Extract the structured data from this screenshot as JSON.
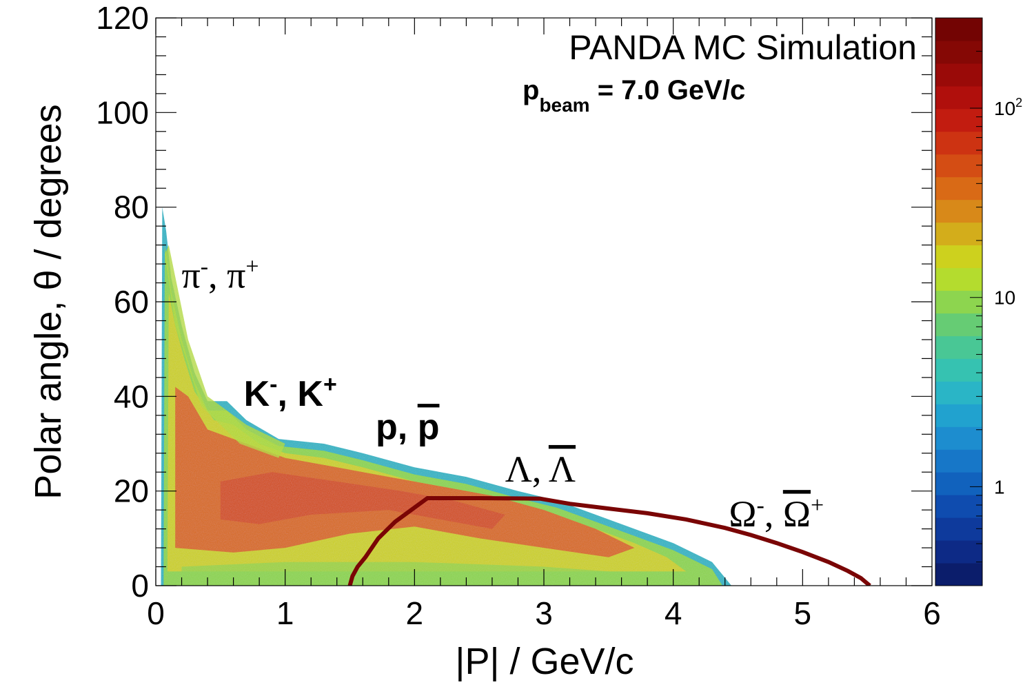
{
  "chart_data": {
    "type": "heatmap",
    "title": "PANDA MC Simulation",
    "subtitle": {
      "main": "p",
      "sub": "beam",
      "rest": " = 7.0 GeV/c"
    },
    "xlabel": "|P| / GeV/c",
    "ylabel": "Polar angle, θ / degrees",
    "xlim": [
      0,
      6
    ],
    "ylim": [
      0,
      120
    ],
    "x_ticks": [
      "0",
      "1",
      "2",
      "3",
      "4",
      "5",
      "6"
    ],
    "y_ticks": [
      "0",
      "20",
      "40",
      "60",
      "80",
      "100",
      "120"
    ],
    "colorbar": {
      "scale": "log",
      "range": [
        0.3,
        300
      ],
      "tick_labels": [
        {
          "base": "1",
          "exp": "",
          "value": 1
        },
        {
          "base": "10",
          "exp": "",
          "value": 10
        },
        {
          "base": "10",
          "exp": "2",
          "value": 100
        }
      ],
      "colors": [
        "#0b1d6b",
        "#0d2a86",
        "#0e3a9c",
        "#0f4caf",
        "#1162bd",
        "#1777c8",
        "#1d8dcf",
        "#21a2cf",
        "#2ab5c6",
        "#36c2b1",
        "#49c795",
        "#66cc74",
        "#8dd54f",
        "#b4dc2e",
        "#cdd11e",
        "#d3ad1b",
        "#d88919",
        "#d96a16",
        "#d44d14",
        "#cd3312",
        "#c21c10",
        "#b00f0c",
        "#9a0a08",
        "#850805",
        "#730403"
      ]
    },
    "annotations": [
      {
        "id": "pion",
        "style": "serif",
        "parts": [
          {
            "t": "π",
            "sup": false
          },
          {
            "t": "-",
            "sup": true
          },
          {
            "t": ",  π",
            "sup": false
          },
          {
            "t": "+",
            "sup": true
          }
        ],
        "at": [
          0.2,
          63
        ]
      },
      {
        "id": "kaon",
        "style": "sans",
        "parts": [
          {
            "t": "K",
            "sup": false
          },
          {
            "t": "-",
            "sup": true
          },
          {
            "t": ", K",
            "sup": false
          },
          {
            "t": "+",
            "sup": true
          }
        ],
        "at": [
          0.68,
          38
        ]
      },
      {
        "id": "proton",
        "style": "sans",
        "parts": [
          {
            "t": "p,  ",
            "sup": false
          },
          {
            "t": "p",
            "sup": false,
            "bar": true
          }
        ],
        "at": [
          1.7,
          31
        ]
      },
      {
        "id": "lambda",
        "style": "serif",
        "parts": [
          {
            "t": "Λ,  ",
            "sup": false
          },
          {
            "t": "Λ",
            "sup": false,
            "bar": true
          }
        ],
        "at": [
          2.7,
          22
        ]
      },
      {
        "id": "omega",
        "style": "serif",
        "parts": [
          {
            "t": "Ω",
            "sup": false
          },
          {
            "t": "-",
            "sup": true
          },
          {
            "t": ",  ",
            "sup": false
          },
          {
            "t": "Ω",
            "sup": false,
            "bar": true
          },
          {
            "t": "+",
            "sup": true
          }
        ],
        "at": [
          4.43,
          12.5
        ]
      }
    ],
    "series": [
      {
        "name": "pion",
        "description": "pi-/pi+ envelope",
        "envelope": [
          [
            0.04,
            0
          ],
          [
            0.05,
            80
          ],
          [
            0.08,
            75
          ],
          [
            0.12,
            65
          ],
          [
            0.2,
            55
          ],
          [
            0.3,
            45
          ],
          [
            0.4,
            39
          ],
          [
            0.55,
            39
          ],
          [
            0.7,
            35
          ],
          [
            0.95,
            31
          ],
          [
            1.3,
            30
          ],
          [
            1.6,
            28
          ],
          [
            2.0,
            25
          ],
          [
            2.4,
            23
          ],
          [
            2.8,
            20
          ],
          [
            3.1,
            18
          ],
          [
            3.4,
            15
          ],
          [
            3.7,
            12
          ],
          [
            4.0,
            9
          ],
          [
            4.3,
            5
          ],
          [
            4.45,
            0
          ]
        ]
      },
      {
        "name": "omega",
        "description": "Omega-/anti-Omega+ band",
        "points": [
          [
            1.5,
            0
          ],
          [
            1.52,
            2
          ],
          [
            1.56,
            4
          ],
          [
            1.62,
            6
          ],
          [
            1.72,
            10
          ],
          [
            1.85,
            13.5
          ],
          [
            2.0,
            16.5
          ],
          [
            2.1,
            18.5
          ],
          [
            2.5,
            18.5
          ],
          [
            2.97,
            18.4
          ],
          [
            3.2,
            17.3
          ],
          [
            3.5,
            16.3
          ],
          [
            3.8,
            15.3
          ],
          [
            4.1,
            14.0
          ],
          [
            4.4,
            12.2
          ],
          [
            4.6,
            10.7
          ],
          [
            4.8,
            9.0
          ],
          [
            5.0,
            7.1
          ],
          [
            5.2,
            5.0
          ],
          [
            5.35,
            3.1
          ],
          [
            5.45,
            1.6
          ],
          [
            5.52,
            0
          ]
        ]
      }
    ]
  }
}
